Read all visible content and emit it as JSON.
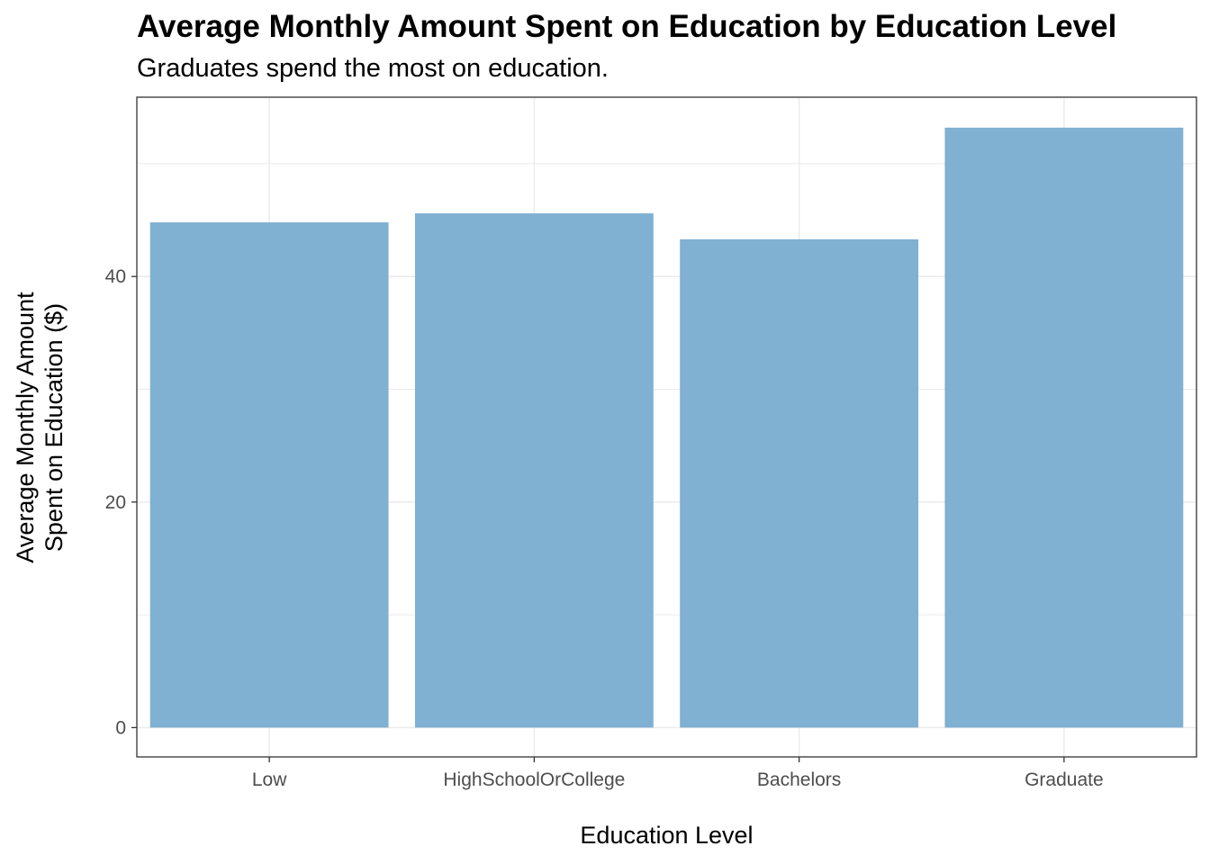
{
  "chart_data": {
    "type": "bar",
    "title": "Average Monthly Amount Spent on Education by Education Level",
    "subtitle": "Graduates spend the most on education.",
    "xlabel": "Education Level",
    "ylabel_lines": [
      "Average Monthly Amount",
      "Spent on Education ($)"
    ],
    "categories": [
      "Low",
      "HighSchoolOrCollege",
      "Bachelors",
      "Graduate"
    ],
    "values": [
      44.8,
      45.6,
      43.3,
      53.2
    ],
    "yticks": [
      0,
      20,
      40
    ],
    "ylim": [
      -2.6,
      55.9
    ],
    "grid": true,
    "bar_color": "#80B0D2"
  }
}
